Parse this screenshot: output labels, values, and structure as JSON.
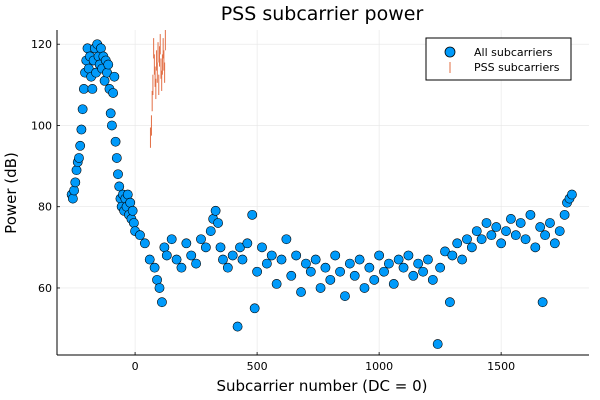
{
  "chart_data": {
    "type": "scatter",
    "title": "PSS subcarrier power",
    "xlabel": "Subcarrier number (DC = 0)",
    "ylabel": "Power (dB)",
    "xlim": [
      -320,
      1860
    ],
    "ylim": [
      43.5,
      123.5
    ],
    "xticks": [
      0,
      500,
      1000,
      1500
    ],
    "yticks": [
      60,
      80,
      100,
      120
    ],
    "grid": true,
    "legend_position": "top-right",
    "colors": {
      "all": "#009AFA",
      "pss": "#E26F46"
    },
    "series": [
      {
        "name": "All subcarriers",
        "marker": "circle",
        "points": [
          [
            -260,
            83
          ],
          [
            -255,
            82
          ],
          [
            -250,
            84
          ],
          [
            -245,
            86
          ],
          [
            -240,
            89
          ],
          [
            -235,
            91
          ],
          [
            -230,
            92
          ],
          [
            -225,
            95
          ],
          [
            -220,
            99
          ],
          [
            -215,
            104
          ],
          [
            -210,
            109
          ],
          [
            -205,
            113
          ],
          [
            -200,
            116
          ],
          [
            -195,
            119
          ],
          [
            -190,
            114
          ],
          [
            -185,
            117
          ],
          [
            -180,
            112
          ],
          [
            -175,
            109
          ],
          [
            -170,
            116
          ],
          [
            -165,
            119
          ],
          [
            -160,
            113
          ],
          [
            -155,
            120
          ],
          [
            -150,
            117
          ],
          [
            -145,
            115
          ],
          [
            -140,
            119
          ],
          [
            -135,
            114
          ],
          [
            -130,
            117
          ],
          [
            -125,
            111
          ],
          [
            -120,
            116
          ],
          [
            -115,
            113
          ],
          [
            -110,
            115
          ],
          [
            -105,
            109
          ],
          [
            -100,
            103
          ],
          [
            -95,
            100
          ],
          [
            -90,
            108
          ],
          [
            -85,
            112
          ],
          [
            -80,
            96
          ],
          [
            -75,
            92
          ],
          [
            -70,
            88
          ],
          [
            -65,
            85
          ],
          [
            -60,
            82
          ],
          [
            -55,
            80
          ],
          [
            -50,
            83
          ],
          [
            -45,
            79
          ],
          [
            -40,
            82
          ],
          [
            -35,
            80
          ],
          [
            -30,
            83
          ],
          [
            -25,
            78
          ],
          [
            -20,
            81
          ],
          [
            -15,
            77
          ],
          [
            -10,
            79
          ],
          [
            -5,
            76
          ],
          [
            0,
            74
          ],
          [
            20,
            73
          ],
          [
            40,
            71
          ],
          [
            60,
            67
          ],
          [
            80,
            65
          ],
          [
            90,
            62
          ],
          [
            100,
            60
          ],
          [
            110,
            56.5
          ],
          [
            120,
            70
          ],
          [
            130,
            68
          ],
          [
            150,
            72
          ],
          [
            170,
            67
          ],
          [
            190,
            65
          ],
          [
            210,
            71
          ],
          [
            230,
            68
          ],
          [
            250,
            66
          ],
          [
            270,
            72
          ],
          [
            290,
            70
          ],
          [
            310,
            74
          ],
          [
            320,
            77
          ],
          [
            330,
            79
          ],
          [
            340,
            76
          ],
          [
            350,
            70
          ],
          [
            360,
            67
          ],
          [
            380,
            65
          ],
          [
            400,
            68
          ],
          [
            420,
            50.5
          ],
          [
            430,
            70
          ],
          [
            440,
            67
          ],
          [
            460,
            71
          ],
          [
            480,
            78
          ],
          [
            490,
            55
          ],
          [
            500,
            64
          ],
          [
            520,
            70
          ],
          [
            540,
            66
          ],
          [
            560,
            68
          ],
          [
            580,
            61
          ],
          [
            600,
            67
          ],
          [
            620,
            72
          ],
          [
            640,
            63
          ],
          [
            660,
            68
          ],
          [
            680,
            59
          ],
          [
            700,
            66
          ],
          [
            720,
            64
          ],
          [
            740,
            67
          ],
          [
            760,
            60
          ],
          [
            780,
            65
          ],
          [
            800,
            62
          ],
          [
            820,
            68
          ],
          [
            840,
            64
          ],
          [
            860,
            58
          ],
          [
            880,
            66
          ],
          [
            900,
            63
          ],
          [
            920,
            67
          ],
          [
            940,
            60
          ],
          [
            960,
            65
          ],
          [
            980,
            62
          ],
          [
            1000,
            68
          ],
          [
            1020,
            64
          ],
          [
            1040,
            66
          ],
          [
            1060,
            61
          ],
          [
            1080,
            67
          ],
          [
            1100,
            65
          ],
          [
            1120,
            68
          ],
          [
            1140,
            63
          ],
          [
            1160,
            66
          ],
          [
            1180,
            64
          ],
          [
            1200,
            67
          ],
          [
            1220,
            62
          ],
          [
            1240,
            46.2
          ],
          [
            1250,
            65
          ],
          [
            1270,
            69
          ],
          [
            1290,
            56.5
          ],
          [
            1300,
            68
          ],
          [
            1320,
            71
          ],
          [
            1340,
            67
          ],
          [
            1360,
            72
          ],
          [
            1380,
            70
          ],
          [
            1400,
            74
          ],
          [
            1420,
            72
          ],
          [
            1440,
            76
          ],
          [
            1460,
            73
          ],
          [
            1480,
            75
          ],
          [
            1500,
            71
          ],
          [
            1520,
            74
          ],
          [
            1540,
            77
          ],
          [
            1560,
            73
          ],
          [
            1580,
            76
          ],
          [
            1600,
            72
          ],
          [
            1620,
            78
          ],
          [
            1640,
            70
          ],
          [
            1660,
            75
          ],
          [
            1670,
            56.5
          ],
          [
            1680,
            73
          ],
          [
            1700,
            76
          ],
          [
            1720,
            71
          ],
          [
            1740,
            74
          ],
          [
            1760,
            78
          ],
          [
            1770,
            81
          ],
          [
            1780,
            82
          ],
          [
            1790,
            83
          ]
        ]
      },
      {
        "name": "PSS subcarriers",
        "marker": "vline",
        "x": [
          63,
          67,
          70,
          73,
          76,
          79,
          82,
          85,
          88,
          91,
          94,
          97,
          100,
          103,
          106,
          109,
          112,
          115,
          118,
          121,
          124
        ],
        "values": [
          97,
          100,
          106,
          110,
          119,
          115,
          112,
          109,
          116,
          113,
          118,
          110,
          117,
          120,
          114,
          111,
          115,
          119,
          116,
          113,
          121
        ]
      }
    ]
  }
}
